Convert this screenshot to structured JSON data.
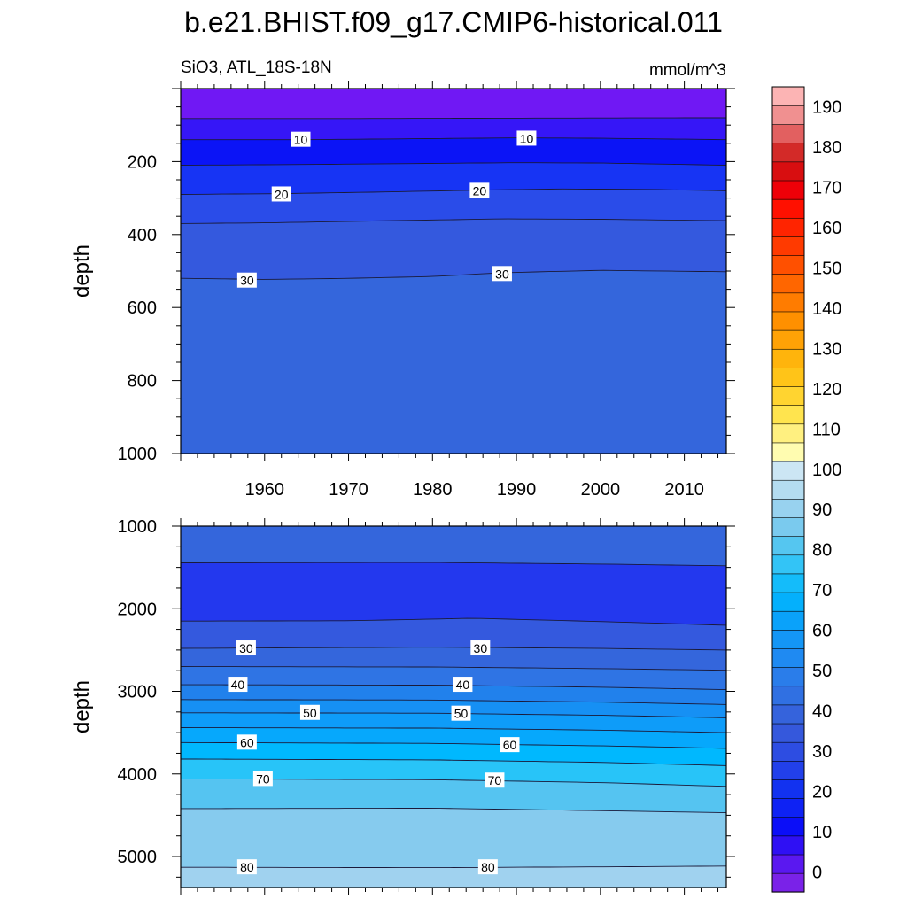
{
  "figure": {
    "title": "b.e21.BHIST.f09_g17.CMIP6-historical.011",
    "subtitle_left": "SiO3, ATL_18S-18N",
    "subtitle_right": "mmol/m^3"
  },
  "chart_data": [
    {
      "type": "contour",
      "panel": "upper",
      "variable": "SiO3",
      "region": "ATL_18S-18N",
      "units": "mmol/m^3",
      "xlabel": "",
      "ylabel": "depth",
      "xlim": [
        1950,
        2015
      ],
      "ylim": [
        0,
        1000
      ],
      "y_reversed": true,
      "x_ticks": [
        1960,
        1970,
        1980,
        1990,
        2000,
        2010
      ],
      "y_ticks": [
        200,
        400,
        600,
        800,
        1000
      ],
      "contour_lines": [
        {
          "level": 5,
          "depths": [
            [
              1950,
              82
            ],
            [
              1970,
              82
            ],
            [
              1990,
              81
            ],
            [
              2015,
              80
            ]
          ]
        },
        {
          "level": 10,
          "depths": [
            [
              1950,
              140
            ],
            [
              1965,
              140
            ],
            [
              1980,
              137
            ],
            [
              1990,
              135
            ],
            [
              2000,
              136
            ],
            [
              2015,
              140
            ]
          ]
        },
        {
          "level": 15,
          "depths": [
            [
              1950,
              210
            ],
            [
              1965,
              208
            ],
            [
              1980,
              205
            ],
            [
              1990,
              203
            ],
            [
              2000,
              204
            ],
            [
              2015,
              210
            ]
          ]
        },
        {
          "level": 20,
          "depths": [
            [
              1950,
              290
            ],
            [
              1962,
              288
            ],
            [
              1975,
              283
            ],
            [
              1986,
              278
            ],
            [
              1995,
              275
            ],
            [
              2005,
              276
            ],
            [
              2015,
              280
            ]
          ]
        },
        {
          "level": 25,
          "depths": [
            [
              1950,
              370
            ],
            [
              1960,
              368
            ],
            [
              1975,
              362
            ],
            [
              1988,
              357
            ],
            [
              2000,
              358
            ],
            [
              2015,
              362
            ]
          ]
        },
        {
          "level": 30,
          "depths": [
            [
              1950,
              520
            ],
            [
              1960,
              523
            ],
            [
              1970,
              520
            ],
            [
              1980,
              515
            ],
            [
              1988,
              505
            ],
            [
              2000,
              498
            ],
            [
              2015,
              502
            ]
          ]
        }
      ],
      "bands": [
        {
          "from_level": 0,
          "color": "#7018f4"
        },
        {
          "from_level": 5,
          "color": "#3616f7"
        },
        {
          "from_level": 10,
          "color": "#0b14f6"
        },
        {
          "from_level": 15,
          "color": "#1734f4"
        },
        {
          "from_level": 20,
          "color": "#2a4ce9"
        },
        {
          "from_level": 25,
          "color": "#3459de"
        },
        {
          "from_level": 30,
          "color": "#3466dc"
        }
      ],
      "line_labels": [
        {
          "text": "10",
          "year": 1964.3,
          "depth": 140
        },
        {
          "text": "10",
          "year": 1991.2,
          "depth": 137
        },
        {
          "text": "20",
          "year": 1962.0,
          "depth": 290
        },
        {
          "text": "20",
          "year": 1985.6,
          "depth": 280
        },
        {
          "text": "30",
          "year": 1957.9,
          "depth": 526
        },
        {
          "text": "30",
          "year": 1988.3,
          "depth": 508
        }
      ]
    },
    {
      "type": "contour",
      "panel": "lower",
      "variable": "SiO3",
      "region": "ATL_18S-18N",
      "units": "mmol/m^3",
      "xlabel": "",
      "ylabel": "depth",
      "xlim": [
        1950,
        2015
      ],
      "ylim": [
        1000,
        5375
      ],
      "y_reversed": true,
      "x_ticks": [
        1960,
        1970,
        1980,
        1990,
        2000,
        2010
      ],
      "y_ticks": [
        1000,
        2000,
        3000,
        4000,
        5000
      ],
      "contour_lines": [
        {
          "level": 25,
          "depths": [
            [
              1950,
              1445
            ],
            [
              1980,
              1440
            ],
            [
              2000,
              1460
            ],
            [
              2015,
              1480
            ]
          ]
        },
        {
          "level": 25,
          "depths": [
            [
              1950,
              2150
            ],
            [
              1970,
              2145
            ],
            [
              1985,
              2115
            ],
            [
              2000,
              2155
            ],
            [
              2015,
              2200
            ]
          ]
        },
        {
          "level": 30,
          "depths": [
            [
              1950,
              2480
            ],
            [
              1980,
              2465
            ],
            [
              2000,
              2480
            ],
            [
              2015,
              2500
            ]
          ]
        },
        {
          "level": 35,
          "depths": [
            [
              1950,
              2700
            ],
            [
              1980,
              2705
            ],
            [
              2000,
              2725
            ],
            [
              2015,
              2745
            ]
          ]
        },
        {
          "level": 40,
          "depths": [
            [
              1950,
              2920
            ],
            [
              1980,
              2925
            ],
            [
              2000,
              2950
            ],
            [
              2015,
              2980
            ]
          ]
        },
        {
          "level": 45,
          "depths": [
            [
              1950,
              3100
            ],
            [
              1980,
              3105
            ],
            [
              2000,
              3130
            ],
            [
              2015,
              3160
            ]
          ]
        },
        {
          "level": 50,
          "depths": [
            [
              1950,
              3260
            ],
            [
              1980,
              3265
            ],
            [
              2000,
              3290
            ],
            [
              2015,
              3320
            ]
          ]
        },
        {
          "level": 55,
          "depths": [
            [
              1950,
              3440
            ],
            [
              1980,
              3445
            ],
            [
              2000,
              3470
            ],
            [
              2015,
              3500
            ]
          ]
        },
        {
          "level": 60,
          "depths": [
            [
              1950,
              3620
            ],
            [
              1980,
              3630
            ],
            [
              2000,
              3660
            ],
            [
              2015,
              3690
            ]
          ]
        },
        {
          "level": 65,
          "depths": [
            [
              1950,
              3820
            ],
            [
              1980,
              3830
            ],
            [
              2000,
              3860
            ],
            [
              2015,
              3900
            ]
          ]
        },
        {
          "level": 70,
          "depths": [
            [
              1950,
              4060
            ],
            [
              1980,
              4070
            ],
            [
              2000,
              4105
            ],
            [
              2015,
              4150
            ]
          ]
        },
        {
          "level": 75,
          "depths": [
            [
              1950,
              4420
            ],
            [
              1980,
              4415
            ],
            [
              2000,
              4445
            ],
            [
              2015,
              4470
            ]
          ]
        },
        {
          "level": 80,
          "depths": [
            [
              1950,
              5130
            ],
            [
              1980,
              5135
            ],
            [
              2000,
              5125
            ],
            [
              2015,
              5115
            ]
          ]
        }
      ],
      "bands": [
        {
          "from_level": 20,
          "color": "#3466dc"
        },
        {
          "from_level": 21,
          "color": "#2338ee"
        },
        {
          "from_level": 25,
          "color": "#3459de"
        },
        {
          "from_level": 30,
          "color": "#3466dc"
        },
        {
          "from_level": 35,
          "color": "#2f74e4"
        },
        {
          "from_level": 40,
          "color": "#2181ec"
        },
        {
          "from_level": 45,
          "color": "#1690f4"
        },
        {
          "from_level": 50,
          "color": "#0e9cf9"
        },
        {
          "from_level": 55,
          "color": "#06a8fc"
        },
        {
          "from_level": 60,
          "color": "#00b8fe"
        },
        {
          "from_level": 65,
          "color": "#28c4f8"
        },
        {
          "from_level": 70,
          "color": "#55c4f1"
        },
        {
          "from_level": 75,
          "color": "#86cbee"
        },
        {
          "from_level": 80,
          "color": "#a0d2ef"
        }
      ],
      "line_labels": [
        {
          "text": "30",
          "year": 1957.8,
          "depth": 2480
        },
        {
          "text": "30",
          "year": 1985.7,
          "depth": 2480
        },
        {
          "text": "40",
          "year": 1956.8,
          "depth": 2920
        },
        {
          "text": "40",
          "year": 1983.6,
          "depth": 2920
        },
        {
          "text": "50",
          "year": 1965.4,
          "depth": 3260
        },
        {
          "text": "50",
          "year": 1983.4,
          "depth": 3270
        },
        {
          "text": "60",
          "year": 1957.9,
          "depth": 3620
        },
        {
          "text": "60",
          "year": 1989.2,
          "depth": 3650
        },
        {
          "text": "70",
          "year": 1959.8,
          "depth": 4060
        },
        {
          "text": "70",
          "year": 1987.4,
          "depth": 4080
        },
        {
          "text": "80",
          "year": 1957.9,
          "depth": 5130
        },
        {
          "text": "80",
          "year": 1986.6,
          "depth": 5130
        }
      ]
    },
    {
      "type": "colorbar",
      "orientation": "vertical",
      "levels_min": -5,
      "levels_max": 195,
      "step": 5,
      "tick_labels": [
        0,
        10,
        20,
        30,
        40,
        50,
        60,
        70,
        80,
        90,
        100,
        110,
        120,
        130,
        140,
        150,
        160,
        170,
        180,
        190
      ],
      "colors": [
        "#7a22e8",
        "#5a18f0",
        "#2f10f4",
        "#0b0ef8",
        "#0e22f4",
        "#1232f0",
        "#2240ea",
        "#2d4de2",
        "#3558dc",
        "#3563dc",
        "#3070e2",
        "#2a7dea",
        "#1f8af2",
        "#1496f6",
        "#0aa2fa",
        "#04b0fc",
        "#14bcfa",
        "#33c4f6",
        "#55c6f0",
        "#7acaee",
        "#98d2ef",
        "#b4dcf0",
        "#cce6f4",
        "#fffcb0",
        "#fff080",
        "#ffe44e",
        "#ffd430",
        "#ffc418",
        "#ffb40c",
        "#ffa206",
        "#ff9000",
        "#ff7c00",
        "#ff6600",
        "#ff5000",
        "#ff3a00",
        "#ff2400",
        "#ff1000",
        "#ee0008",
        "#d80e10",
        "#d32a28",
        "#e26060",
        "#f09090",
        "#fcb4b4"
      ]
    }
  ]
}
